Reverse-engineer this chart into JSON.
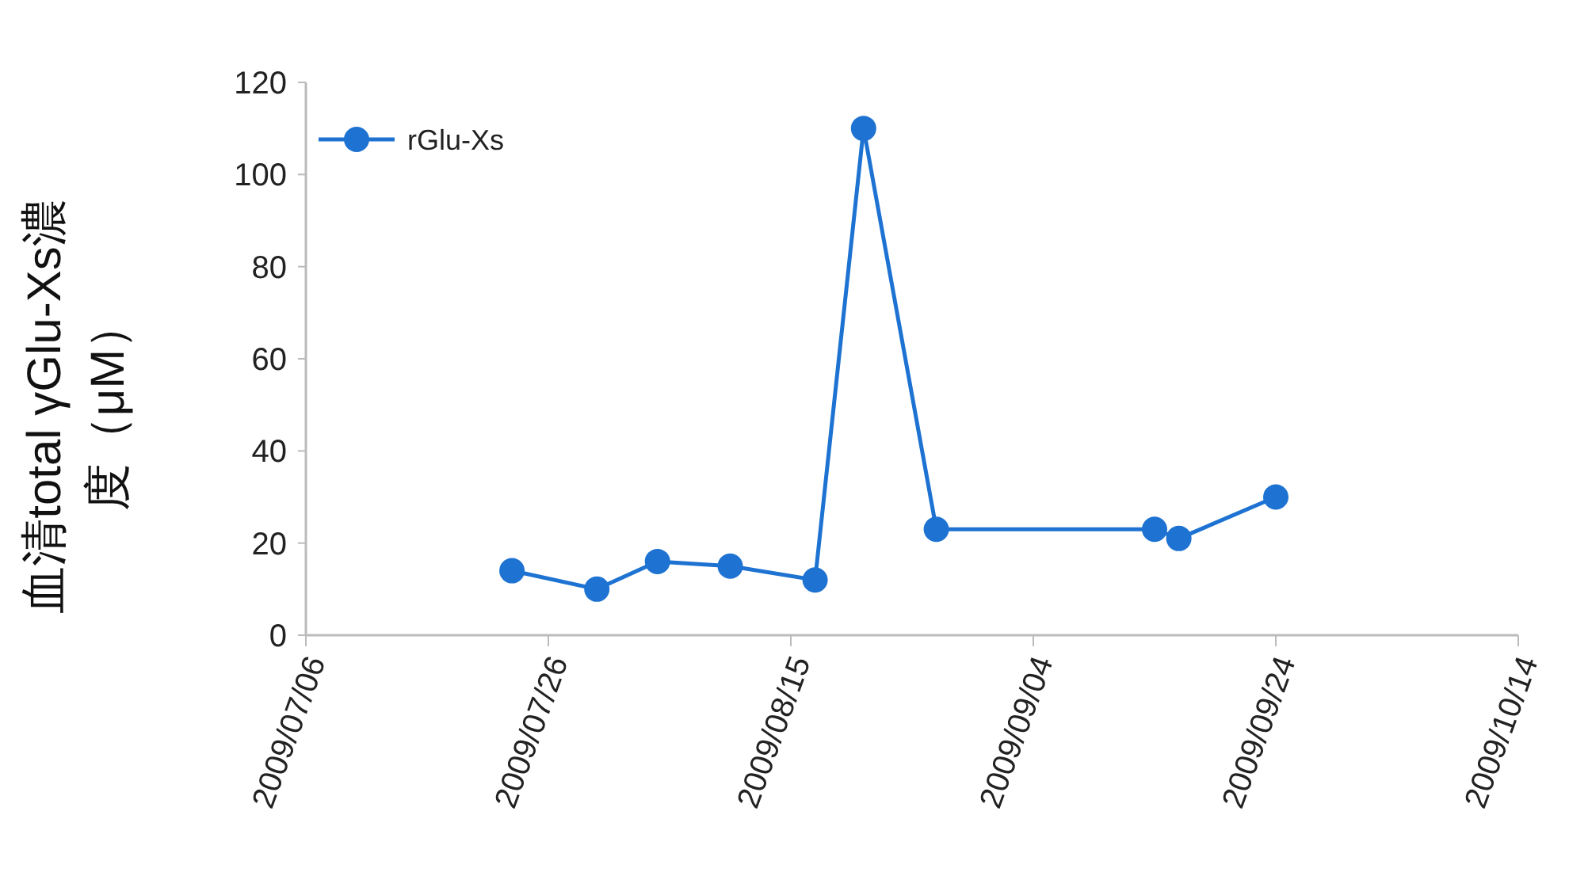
{
  "chart_data": {
    "type": "line",
    "ylabel": "血清total γGlu-Xs濃度（μM）",
    "x": [
      "2009-07-23",
      "2009-07-30",
      "2009-08-04",
      "2009-08-10",
      "2009-08-17",
      "2009-08-21",
      "2009-08-27",
      "2009-09-14",
      "2009-09-16",
      "2009-09-24"
    ],
    "series": [
      {
        "name": "rGlu-Xs",
        "color": "#1e73d2",
        "values": [
          14,
          10,
          16,
          15,
          12,
          110,
          23,
          23,
          21,
          30
        ]
      }
    ],
    "xlim": [
      "2009-07-06",
      "2009-10-14"
    ],
    "xticks": [
      {
        "value": "2009-07-06",
        "label": "2009/07/06"
      },
      {
        "value": "2009-07-26",
        "label": "2009/07/26"
      },
      {
        "value": "2009-08-15",
        "label": "2009/08/15"
      },
      {
        "value": "2009-09-04",
        "label": "2009/09/04"
      },
      {
        "value": "2009-09-24",
        "label": "2009/09/24"
      },
      {
        "value": "2009-10-14",
        "label": "2009/10/14"
      }
    ],
    "ylim": [
      0,
      120
    ],
    "yticks": [
      0,
      20,
      40,
      60,
      80,
      100,
      120
    ],
    "grid": false,
    "legend": "top left",
    "marker": "circle",
    "line_style": "solid"
  }
}
